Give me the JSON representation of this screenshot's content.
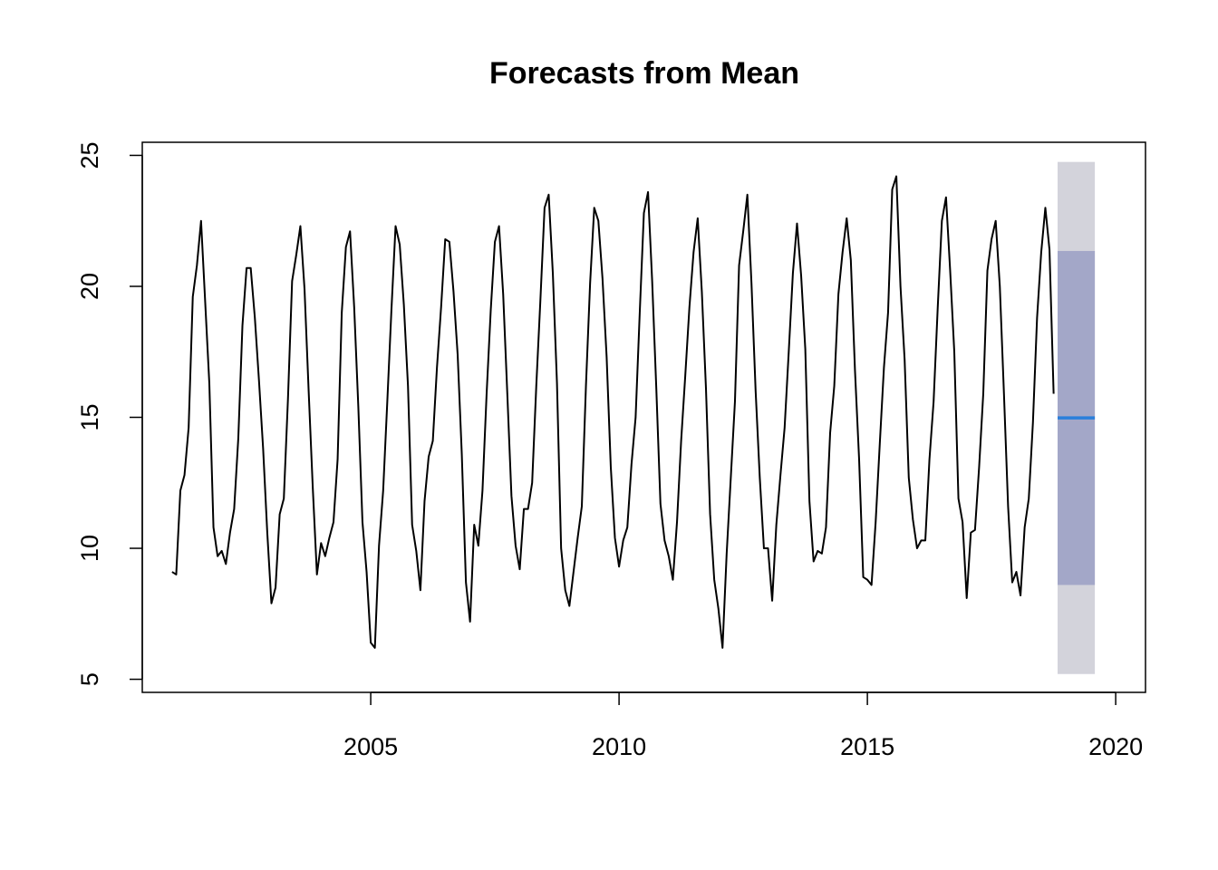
{
  "chart_data": {
    "type": "line",
    "title": "Forecasts from Mean",
    "xlabel": "",
    "ylabel": "",
    "xlim": [
      2000.4,
      2020.6
    ],
    "ylim": [
      4.5,
      25.5
    ],
    "x_start": 2001.0,
    "x_step": 0.08333333,
    "x_ticks": [
      2005,
      2010,
      2015,
      2020
    ],
    "y_ticks": [
      5,
      10,
      15,
      20,
      25
    ],
    "grid": false,
    "legend": "none",
    "series": [
      {
        "values": [
          9.1,
          9.0,
          12.2,
          12.8,
          14.6,
          19.6,
          20.8,
          22.5,
          19.4,
          16.3,
          10.8,
          9.7,
          9.9,
          9.4,
          10.6,
          11.5,
          14.2,
          18.5,
          20.7,
          20.7,
          18.8,
          16.4,
          13.8,
          10.6,
          7.9,
          8.5,
          11.3,
          11.9,
          15.7,
          20.2,
          21.2,
          22.3,
          19.9,
          16.0,
          12.3,
          9.0,
          10.2,
          9.7,
          10.4,
          11.0,
          13.4,
          19.0,
          21.5,
          22.1,
          19.2,
          15.4,
          11.0,
          9.1,
          6.4,
          6.2,
          10.1,
          12.2,
          15.6,
          19.1,
          22.3,
          21.6,
          19.3,
          16.2,
          10.9,
          9.9,
          8.4,
          11.8,
          13.5,
          14.1,
          16.9,
          19.2,
          21.8,
          21.7,
          19.8,
          17.4,
          13.6,
          8.7,
          7.2,
          10.9,
          10.1,
          12.2,
          15.9,
          19.1,
          21.7,
          22.3,
          19.7,
          15.9,
          12.0,
          10.1,
          9.2,
          11.5,
          11.5,
          12.5,
          16.2,
          19.5,
          23.0,
          23.5,
          20.5,
          16.3,
          10.0,
          8.4,
          7.8,
          9.1,
          10.4,
          11.6,
          16.2,
          20.1,
          23.0,
          22.5,
          20.3,
          17.3,
          13.1,
          10.4,
          9.3,
          10.3,
          10.8,
          13.2,
          15.0,
          19.0,
          22.8,
          23.6,
          20.2,
          16.1,
          11.7,
          10.3,
          9.7,
          8.8,
          11.0,
          14.1,
          16.6,
          19.2,
          21.3,
          22.6,
          19.8,
          16.1,
          11.3,
          8.8,
          7.7,
          6.2,
          9.8,
          12.7,
          15.6,
          20.8,
          22.1,
          23.5,
          20.1,
          16.0,
          12.7,
          10.0,
          10.0,
          8.0,
          10.9,
          12.8,
          14.6,
          17.5,
          20.5,
          22.4,
          20.4,
          17.6,
          11.8,
          9.5,
          9.9,
          9.8,
          10.8,
          14.4,
          16.2,
          19.7,
          21.3,
          22.6,
          21.0,
          16.8,
          13.4,
          8.9,
          8.8,
          8.6,
          11.0,
          14.0,
          16.9,
          19.0,
          23.7,
          24.2,
          20.0,
          17.2,
          12.7,
          11.1,
          10.0,
          10.3,
          10.3,
          13.4,
          15.6,
          19.2,
          22.5,
          23.4,
          20.6,
          17.5,
          11.9,
          11.0,
          8.1,
          10.6,
          10.7,
          13.1,
          15.9,
          20.6,
          21.8,
          22.5,
          20.0,
          15.9,
          11.6,
          8.7,
          9.1,
          8.2,
          10.8,
          11.9,
          14.8,
          18.8,
          21.3,
          23.0,
          21.4,
          15.9
        ],
        "color": "#000000"
      }
    ],
    "forecast": {
      "x_start": 2018.83,
      "x_end": 2019.58,
      "mean": 14.98,
      "lo80": 8.6,
      "hi80": 21.35,
      "lo95": 5.2,
      "hi95": 24.75,
      "mean_color": "#2b7fdb",
      "band80_color": "#a3a7c8",
      "band95_color": "#d3d3db"
    }
  }
}
